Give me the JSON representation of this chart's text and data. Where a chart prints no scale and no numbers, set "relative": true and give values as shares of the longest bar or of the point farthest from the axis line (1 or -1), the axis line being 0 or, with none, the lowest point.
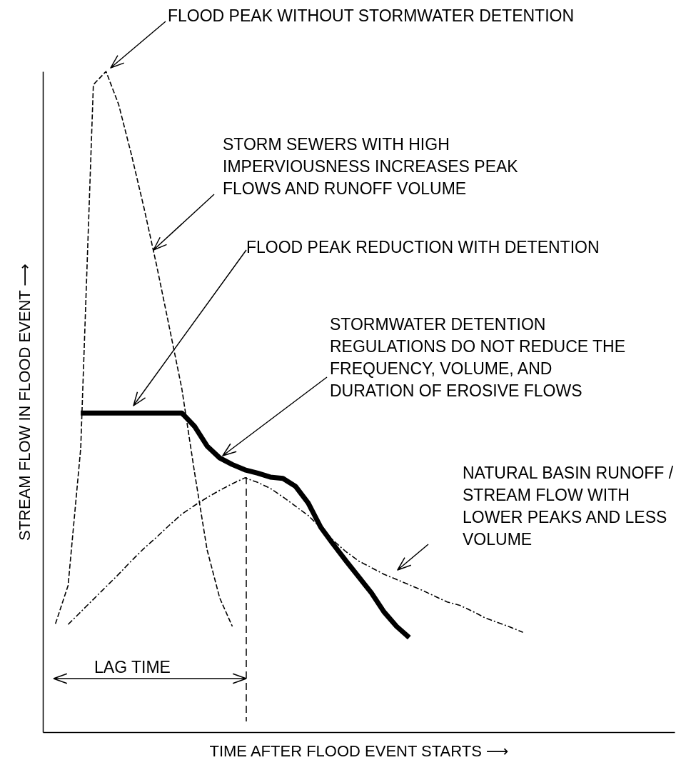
{
  "chart_data": {
    "type": "line",
    "relative": true,
    "xlabel": "TIME AFTER FLOOD EVENT STARTS ⟶",
    "ylabel": "STREAM FLOW IN FLOOD EVENT ⟶",
    "marker": "none",
    "categories": [
      null,
      null,
      null,
      null,
      null,
      null,
      null,
      null,
      null,
      null,
      null,
      null,
      null,
      null,
      null,
      null,
      null,
      null,
      null,
      null,
      null,
      null,
      null,
      null,
      null,
      null,
      null,
      null,
      null,
      null,
      null,
      null,
      null,
      null,
      null,
      null,
      null,
      null
    ],
    "series": [
      {
        "color": "#000000",
        "line_style": "dashed",
        "values": [
          0.164,
          0.222,
          0.43,
          0.98,
          1.0,
          0.95,
          0.875,
          0.794,
          0.707,
          0.614,
          0.52,
          0.394,
          0.276,
          0.203,
          0.16,
          null,
          null,
          null,
          null,
          null,
          null,
          null,
          null,
          null,
          null,
          null,
          null,
          null,
          null,
          null,
          null,
          null,
          null,
          null,
          null,
          null,
          null,
          null
        ]
      },
      {
        "color": "#000000",
        "line_style": "solid",
        "values": [
          null,
          null,
          0.483,
          0.483,
          0.483,
          0.483,
          0.483,
          0.483,
          0.483,
          0.483,
          0.483,
          0.463,
          0.433,
          0.415,
          0.405,
          0.397,
          0.392,
          0.386,
          0.384,
          0.372,
          0.347,
          0.31,
          0.284,
          0.259,
          0.235,
          0.211,
          0.182,
          0.16,
          0.143,
          null,
          null,
          null,
          null,
          null,
          null,
          null,
          null,
          null
        ]
      },
      {
        "color": "#000000",
        "line_style": "dashdot",
        "values": [
          null,
          0.163,
          0.182,
          0.201,
          0.22,
          0.239,
          0.259,
          0.278,
          0.295,
          0.313,
          0.33,
          0.343,
          0.355,
          0.366,
          0.376,
          0.385,
          0.378,
          0.369,
          0.356,
          0.342,
          0.328,
          0.309,
          0.29,
          0.273,
          0.259,
          0.249,
          0.239,
          0.231,
          0.223,
          0.215,
          0.206,
          0.197,
          0.192,
          0.183,
          0.173,
          0.166,
          0.159,
          0.151
        ]
      }
    ],
    "annotations": [
      "FLOOD PEAK WITHOUT STORMWATER DETENTION",
      "STORM SEWERS WITH HIGH IMPERVIOUSNESS INCREASES PEAK FLOWS AND RUNOFF VOLUME",
      "FLOOD PEAK REDUCTION WITH DETENTION",
      "STORMWATER DETENTION REGULATIONS DO NOT REDUCE THE FREQUENCY, VOLUME, AND DURATION OF EROSIVE FLOWS",
      "NATURAL BASIN RUNOFF / STREAM FLOW WITH LOWER PEAKS AND LESS VOLUME",
      "LAG TIME"
    ]
  }
}
